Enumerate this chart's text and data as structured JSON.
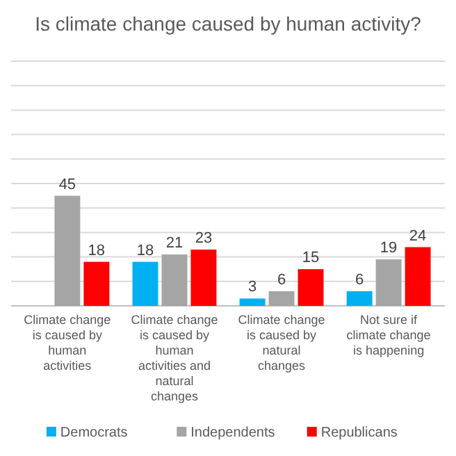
{
  "chart_data": {
    "type": "bar",
    "title": "Is climate change caused by human  activity?",
    "categories": [
      "Climate change is caused by human activities",
      "Climate change is caused by human activities and natural changes",
      "Climate change is caused by natural changes",
      "Not sure if climate change is happening"
    ],
    "series": [
      {
        "name": "Democrats",
        "color": "#00b0f0",
        "values": [
          null,
          18,
          3,
          6
        ]
      },
      {
        "name": "Independents",
        "color": "#a5a5a5",
        "values": [
          45,
          21,
          6,
          19
        ]
      },
      {
        "name": "Republicans",
        "color": "#ff0000",
        "values": [
          18,
          23,
          15,
          24
        ]
      }
    ],
    "ylim": [
      0,
      100
    ],
    "yticks": [
      0,
      10,
      20,
      30,
      40,
      50,
      60,
      70,
      80,
      90,
      100
    ],
    "tick_labels": "x",
    "grid": "y",
    "legend": "bottom",
    "data_labels": true
  }
}
